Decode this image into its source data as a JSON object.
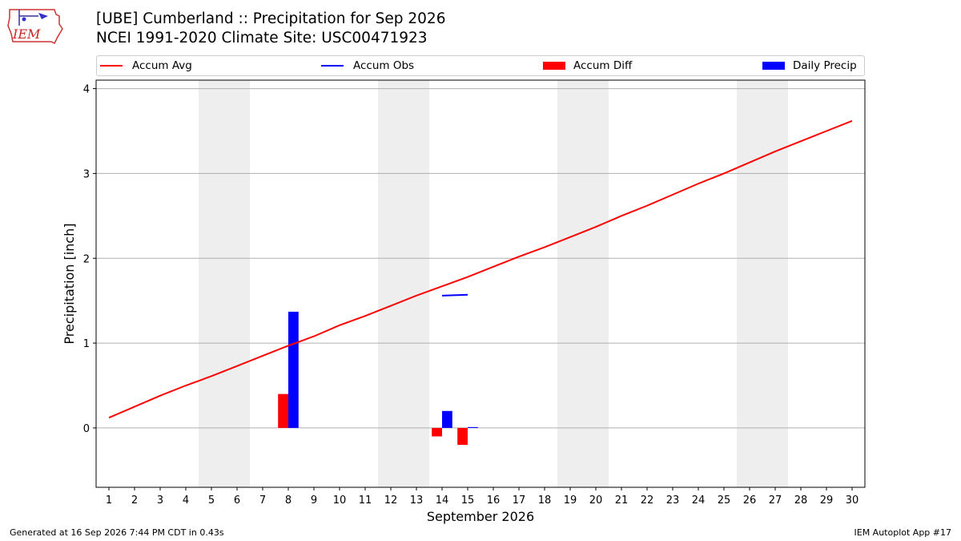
{
  "header": {
    "title_line1": "[UBE] Cumberland :: Precipitation for Sep 2026",
    "title_line2": "NCEI 1991-2020 Climate Site: USC00471923",
    "logo_text": "IEM"
  },
  "footer": {
    "left": "Generated at 16 Sep 2026 7:44 PM CDT in 0.43s",
    "right": "IEM Autoplot App #17"
  },
  "colors": {
    "accum_avg": "#ff0000",
    "accum_obs": "#0000ff",
    "accum_diff": "#ff0000",
    "daily_precip": "#0000ff",
    "weekend_shade": "#eeeeee",
    "grid": "#b0b0b0"
  },
  "chart_data": {
    "type": "bar",
    "xlabel": "September 2026",
    "ylabel": "Precipitation [inch]",
    "xlim": [
      0.5,
      30.5
    ],
    "ylim": [
      -0.7,
      4.1
    ],
    "x_ticks": [
      1,
      2,
      3,
      4,
      5,
      6,
      7,
      8,
      9,
      10,
      11,
      12,
      13,
      14,
      15,
      16,
      17,
      18,
      19,
      20,
      21,
      22,
      23,
      24,
      25,
      26,
      27,
      28,
      29,
      30
    ],
    "y_ticks": [
      0,
      1,
      2,
      3,
      4
    ],
    "grid": "horizontal",
    "legend": {
      "position": "top",
      "entries": [
        {
          "label": "Accum Avg",
          "kind": "line",
          "color": "#ff0000"
        },
        {
          "label": "Accum Obs",
          "kind": "line",
          "color": "#0000ff"
        },
        {
          "label": "Accum Diff",
          "kind": "bar",
          "color": "#ff0000"
        },
        {
          "label": "Daily Precip",
          "kind": "bar",
          "color": "#0000ff"
        }
      ]
    },
    "weekend_shading": [
      [
        4.5,
        6.5
      ],
      [
        11.5,
        13.5
      ],
      [
        18.5,
        20.5
      ],
      [
        25.5,
        27.5
      ]
    ],
    "accum_avg": {
      "x": [
        1,
        2,
        3,
        4,
        5,
        6,
        7,
        8,
        9,
        10,
        11,
        12,
        13,
        14,
        15,
        16,
        17,
        18,
        19,
        20,
        21,
        22,
        23,
        24,
        25,
        26,
        27,
        28,
        29,
        30
      ],
      "y": [
        0.12,
        0.25,
        0.38,
        0.5,
        0.61,
        0.73,
        0.85,
        0.97,
        1.08,
        1.21,
        1.32,
        1.44,
        1.56,
        1.67,
        1.78,
        1.9,
        2.02,
        2.13,
        2.25,
        2.37,
        2.5,
        2.62,
        2.75,
        2.88,
        3.0,
        3.13,
        3.26,
        3.38,
        3.5,
        3.62
      ]
    },
    "accum_obs": {
      "x": [
        14,
        15
      ],
      "y": [
        1.56,
        1.57
      ]
    },
    "accum_diff": {
      "x": [
        8,
        14,
        15
      ],
      "y": [
        0.4,
        -0.1,
        -0.2
      ]
    },
    "daily_precip": {
      "x": [
        8,
        14,
        15
      ],
      "y": [
        1.37,
        0.2,
        0.01
      ]
    }
  }
}
